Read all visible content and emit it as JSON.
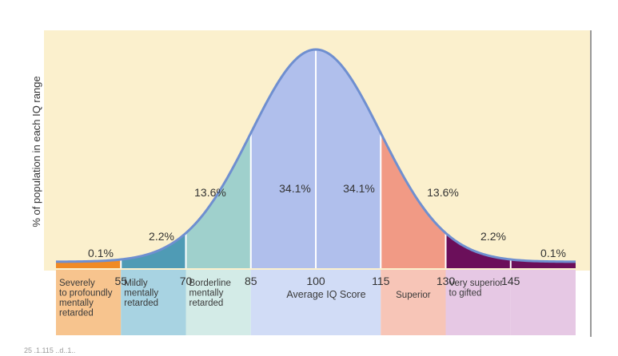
{
  "chart_data": {
    "type": "area",
    "title": "",
    "xlabel": "",
    "ylabel": "% of population in each IQ range",
    "x_ticks": [
      55,
      70,
      85,
      100,
      115,
      130,
      145
    ],
    "xlim": [
      40,
      160
    ],
    "mean": 100,
    "sd": 15,
    "grid": false,
    "legend": "none",
    "colors": {
      "background": "#fbf0cd",
      "curve": "#6f8fd0",
      "divider": "#ffffff"
    },
    "bands": [
      {
        "from": 40,
        "to": 55,
        "percent": "0.1%",
        "label": "Severely\nto profoundly\nmentally\nretarded",
        "fill": "#f08a24",
        "label_bg": "#f7c48e"
      },
      {
        "from": 55,
        "to": 70,
        "percent": "2.2%",
        "label": "Mildly\nmentally\nretarded",
        "fill": "#4f9bb5",
        "label_bg": "#a8d3e2"
      },
      {
        "from": 70,
        "to": 85,
        "percent": "13.6%",
        "label": "Borderline\nmentally\nretarded",
        "fill": "#9fd0cc",
        "label_bg": "#d3ebe7"
      },
      {
        "from": 85,
        "to": 100,
        "percent": "34.1%",
        "label": "",
        "fill": "#b0bfec",
        "label_bg": "#d1dcf6"
      },
      {
        "from": 100,
        "to": 115,
        "percent": "34.1%",
        "label": "",
        "fill": "#b0bfec",
        "label_bg": "#d1dcf6"
      },
      {
        "from": 115,
        "to": 130,
        "percent": "13.6%",
        "label": "Superior",
        "fill": "#f19a85",
        "label_bg": "#f7c5b7"
      },
      {
        "from": 130,
        "to": 145,
        "percent": "2.2%",
        "label": "Very superior\nto gifted",
        "fill": "#6b0f5a",
        "label_bg": "#e6c8e4"
      },
      {
        "from": 145,
        "to": 160,
        "percent": "0.1%",
        "label": "",
        "fill": "#6b0f5a",
        "label_bg": "#e6c8e4"
      }
    ],
    "center_label": "Average IQ Score",
    "footnote": "25    .1.115 ..d..1.."
  }
}
